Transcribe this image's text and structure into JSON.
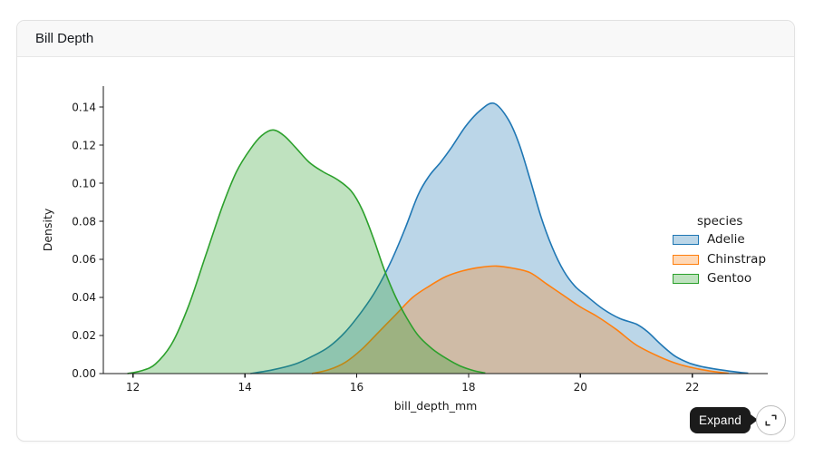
{
  "card": {
    "title": "Bill Depth"
  },
  "expand_control": {
    "tooltip_label": "Expand",
    "button_icon": "expand-diagonal-icon"
  },
  "chart_data": {
    "type": "area",
    "subtype": "kde-density",
    "title": "Bill Depth",
    "xlabel": "bill_depth_mm",
    "ylabel": "Density",
    "xlim": [
      11.47,
      23.35
    ],
    "ylim": [
      0,
      0.151
    ],
    "grid": false,
    "x_tick_values": [
      12,
      14,
      16,
      18,
      20,
      22
    ],
    "x_tick_labels": [
      "12",
      "14",
      "16",
      "18",
      "20",
      "22"
    ],
    "y_tick_values": [
      0.0,
      0.02,
      0.04,
      0.06,
      0.08,
      0.1,
      0.12,
      0.14
    ],
    "y_tick_labels": [
      "0.00",
      "0.02",
      "0.04",
      "0.06",
      "0.08",
      "0.10",
      "0.12",
      "0.14"
    ],
    "legend": {
      "title": "species",
      "position": "right"
    },
    "series": [
      {
        "name": "Adelie",
        "color": "#1f77b4",
        "peak": {
          "x": 18.45,
          "density": 0.142
        },
        "points": [
          [
            14.1,
            0
          ],
          [
            14.5,
            0.002
          ],
          [
            14.9,
            0.005
          ],
          [
            15.2,
            0.009
          ],
          [
            15.5,
            0.014
          ],
          [
            15.8,
            0.022
          ],
          [
            16.1,
            0.033
          ],
          [
            16.35,
            0.044
          ],
          [
            16.6,
            0.058
          ],
          [
            16.85,
            0.075
          ],
          [
            17.1,
            0.094
          ],
          [
            17.3,
            0.104
          ],
          [
            17.5,
            0.111
          ],
          [
            17.7,
            0.119
          ],
          [
            17.95,
            0.13
          ],
          [
            18.2,
            0.138
          ],
          [
            18.45,
            0.142
          ],
          [
            18.7,
            0.134
          ],
          [
            18.9,
            0.121
          ],
          [
            19.1,
            0.102
          ],
          [
            19.3,
            0.082
          ],
          [
            19.5,
            0.066
          ],
          [
            19.7,
            0.054
          ],
          [
            19.9,
            0.046
          ],
          [
            20.1,
            0.041
          ],
          [
            20.4,
            0.034
          ],
          [
            20.7,
            0.029
          ],
          [
            21.0,
            0.026
          ],
          [
            21.2,
            0.022
          ],
          [
            21.45,
            0.015
          ],
          [
            21.7,
            0.009
          ],
          [
            21.95,
            0.0055
          ],
          [
            22.2,
            0.0035
          ],
          [
            22.5,
            0.002
          ],
          [
            22.8,
            0.0008
          ],
          [
            23.0,
            0.0002
          ]
        ]
      },
      {
        "name": "Chinstrap",
        "color": "#ff7f0e",
        "peak": {
          "x": 18.5,
          "density": 0.0565
        },
        "points": [
          [
            15.2,
            0
          ],
          [
            15.5,
            0.002
          ],
          [
            15.8,
            0.006
          ],
          [
            16.1,
            0.013
          ],
          [
            16.4,
            0.022
          ],
          [
            16.7,
            0.031
          ],
          [
            17.0,
            0.04
          ],
          [
            17.3,
            0.046
          ],
          [
            17.6,
            0.051
          ],
          [
            17.9,
            0.054
          ],
          [
            18.2,
            0.0558
          ],
          [
            18.5,
            0.0565
          ],
          [
            18.8,
            0.0553
          ],
          [
            19.1,
            0.053
          ],
          [
            19.4,
            0.047
          ],
          [
            19.7,
            0.041
          ],
          [
            20.0,
            0.035
          ],
          [
            20.3,
            0.03
          ],
          [
            20.65,
            0.023
          ],
          [
            21.0,
            0.015
          ],
          [
            21.4,
            0.009
          ],
          [
            21.75,
            0.005
          ],
          [
            22.1,
            0.0025
          ],
          [
            22.4,
            0.001
          ],
          [
            22.65,
            0.0002
          ]
        ]
      },
      {
        "name": "Gentoo",
        "color": "#2ca02c",
        "peak": {
          "x": 14.5,
          "density": 0.128
        },
        "points": [
          [
            11.9,
            0
          ],
          [
            12.15,
            0.0015
          ],
          [
            12.4,
            0.005
          ],
          [
            12.7,
            0.016
          ],
          [
            13.0,
            0.036
          ],
          [
            13.3,
            0.062
          ],
          [
            13.6,
            0.088
          ],
          [
            13.85,
            0.106
          ],
          [
            14.1,
            0.118
          ],
          [
            14.3,
            0.125
          ],
          [
            14.5,
            0.128
          ],
          [
            14.7,
            0.125
          ],
          [
            14.9,
            0.119
          ],
          [
            15.15,
            0.111
          ],
          [
            15.4,
            0.106
          ],
          [
            15.65,
            0.102
          ],
          [
            15.9,
            0.096
          ],
          [
            16.1,
            0.086
          ],
          [
            16.3,
            0.071
          ],
          [
            16.5,
            0.054
          ],
          [
            16.7,
            0.04
          ],
          [
            16.9,
            0.029
          ],
          [
            17.1,
            0.02
          ],
          [
            17.35,
            0.013
          ],
          [
            17.6,
            0.008
          ],
          [
            17.85,
            0.004
          ],
          [
            18.1,
            0.0015
          ],
          [
            18.3,
            0.0003
          ]
        ]
      }
    ]
  }
}
